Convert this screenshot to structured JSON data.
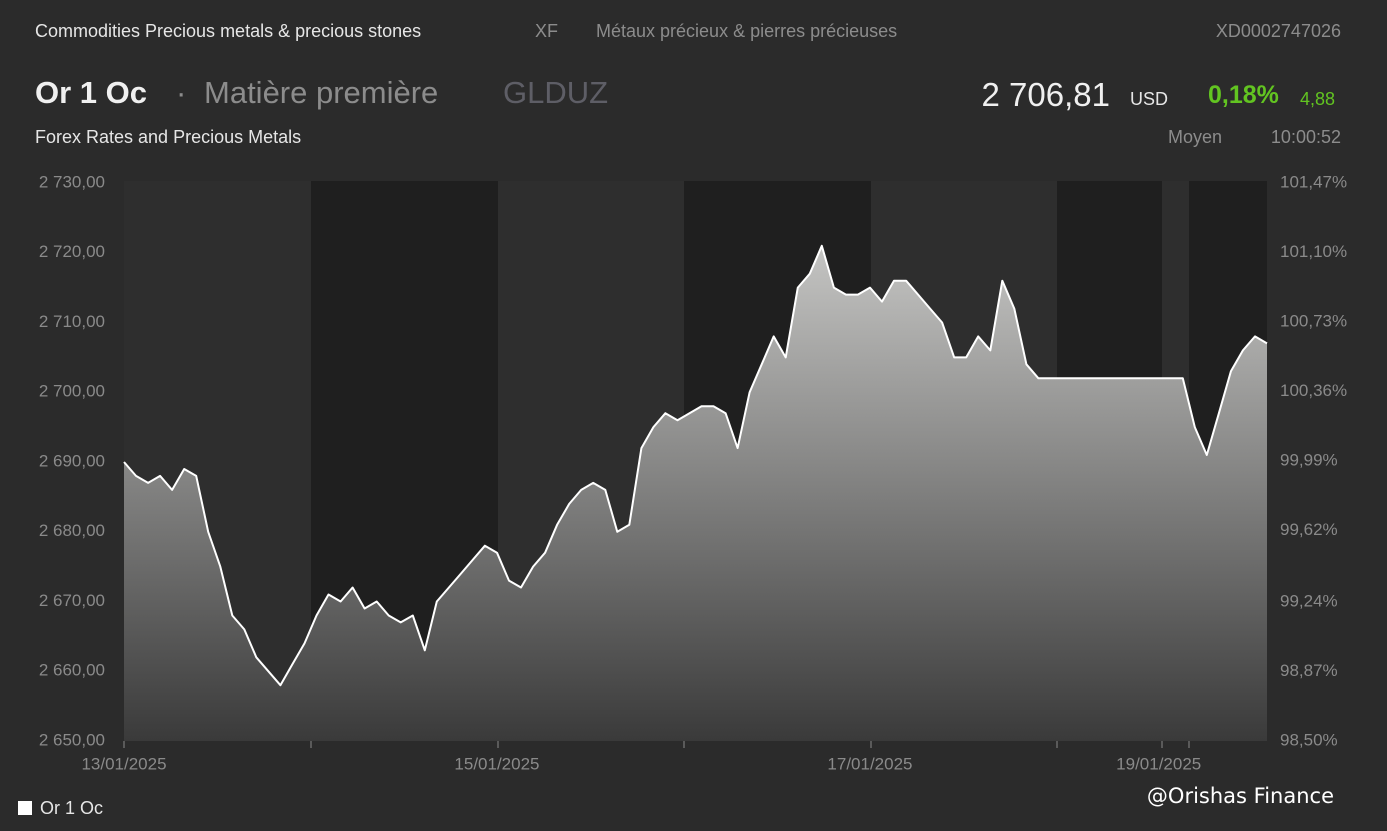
{
  "header": {
    "breadcrumb": "Commodities Precious metals & precious stones",
    "exchange": "XF",
    "french_name": "Métaux précieux & pierres précieuses",
    "isin": "XD0002747026",
    "name": "Or 1 Oc",
    "separator": "·",
    "kind": "Matière première",
    "ticker": "GLDUZ",
    "price": "2 706,81",
    "currency": "USD",
    "change_pct": "0,18%",
    "change_abs": "4,88",
    "source": "Forex Rates and Precious Metals",
    "price_type": "Moyen",
    "time": "10:00:52",
    "watermark": "@Orishas Finance"
  },
  "chart_data": {
    "type": "area",
    "categories": [
      "13/01/2025",
      null,
      null,
      null,
      null,
      null,
      null,
      null,
      null,
      null,
      null,
      null,
      null,
      null,
      null,
      null,
      null,
      null,
      null,
      null,
      null,
      null,
      null,
      null,
      null,
      null,
      null,
      null,
      null,
      null,
      null,
      "15/01/2025",
      null,
      null,
      null,
      null,
      null,
      null,
      null,
      null,
      null,
      null,
      null,
      null,
      null,
      null,
      null,
      null,
      null,
      null,
      null,
      null,
      null,
      null,
      null,
      null,
      null,
      null,
      null,
      null,
      null,
      null,
      "17/01/2025",
      null,
      null,
      null,
      null,
      null,
      null,
      null,
      null,
      null,
      null,
      null,
      null,
      null,
      null,
      null,
      null,
      null,
      null,
      null,
      null,
      null,
      null,
      null,
      "19/01/2025",
      null,
      null,
      null,
      null,
      null,
      null,
      null,
      null,
      null
    ],
    "series": [
      {
        "name": "Or 1 Oc",
        "color": "#ffffff",
        "values": [
          2690,
          2688,
          2687,
          2688,
          2686,
          2689,
          2688,
          2680,
          2675,
          2668,
          2666,
          2662,
          2660,
          2658,
          2661,
          2664,
          2668,
          2671,
          2670,
          2672,
          2669,
          2670,
          2668,
          2667,
          2668,
          2663,
          2670,
          2672,
          2674,
          2676,
          2678,
          2677,
          2673,
          2672,
          2675,
          2677,
          2681,
          2684,
          2686,
          2687,
          2686,
          2680,
          2681,
          2692,
          2695,
          2697,
          2696,
          2697,
          2698,
          2698,
          2697,
          2692,
          2700,
          2704,
          2708,
          2705,
          2715,
          2717,
          2721,
          2715,
          2714,
          2714,
          2715,
          2713,
          2716,
          2716,
          2714,
          2712,
          2710,
          2705,
          2705,
          2708,
          2706,
          2716,
          2712,
          2704,
          2702,
          2702,
          2702,
          2702,
          2702,
          2702,
          2702,
          2702,
          2702,
          2702,
          2702,
          2702,
          2702,
          2695,
          2691,
          2697,
          2703,
          2706,
          2708,
          2707
        ]
      }
    ],
    "ylim": [
      2650,
      2730
    ],
    "yticks": [
      {
        "value": 2650,
        "label": "2 650,00"
      },
      {
        "value": 2660,
        "label": "2 660,00"
      },
      {
        "value": 2670,
        "label": "2 670,00"
      },
      {
        "value": 2680,
        "label": "2 680,00"
      },
      {
        "value": 2690,
        "label": "2 690,00"
      },
      {
        "value": 2700,
        "label": "2 700,00"
      },
      {
        "value": 2710,
        "label": "2 710,00"
      },
      {
        "value": 2720,
        "label": "2 720,00"
      },
      {
        "value": 2730,
        "label": "2 730,00"
      }
    ],
    "y2lim": [
      98.5,
      101.47
    ],
    "y2ticks": [
      {
        "value": 98.5,
        "label": "98,50%"
      },
      {
        "value": 98.87,
        "label": "98,87%"
      },
      {
        "value": 99.24,
        "label": "99,24%"
      },
      {
        "value": 99.62,
        "label": "99,62%"
      },
      {
        "value": 99.99,
        "label": "99,99%"
      },
      {
        "value": 100.36,
        "label": "100,36%"
      },
      {
        "value": 100.73,
        "label": "100,73%"
      },
      {
        "value": 101.1,
        "label": "101,10%"
      },
      {
        "value": 101.47,
        "label": "101,47%"
      }
    ]
  }
}
